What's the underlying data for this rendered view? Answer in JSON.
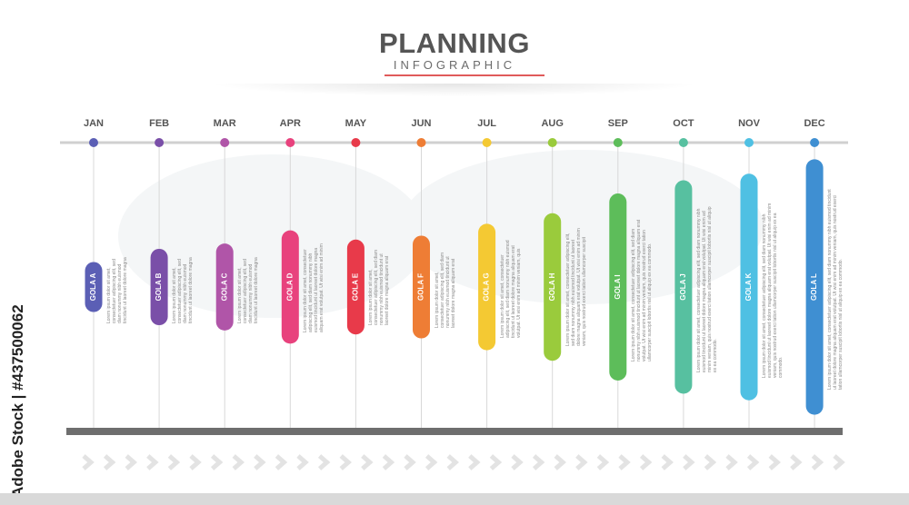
{
  "header": {
    "title": "PLANNING",
    "subtitle": "INFOGRAPHIC",
    "underline_color": "#e05a5a"
  },
  "watermark": "Adobe Stock | #437500062",
  "body_text": "Lorem ipsum dolor sit amet, consectetuer adipiscing elit, sed diam nonummy nibh euismod tincidunt ut laoreet dolore magna aliquam erat volutpat. Ut wisi enim ad minim veniam, quis nostrud exerci tation ullamcorper suscipit lobortis nisl ut aliquip ex ea commodo.",
  "months": [
    {
      "month": "JAN",
      "goal": "GOLA A",
      "color": "#5b5fb5",
      "duration": 0.19
    },
    {
      "month": "FEB",
      "goal": "GOLA B",
      "color": "#7a4fa8",
      "duration": 0.29
    },
    {
      "month": "MAR",
      "goal": "GOLA C",
      "color": "#b055a8",
      "duration": 0.33
    },
    {
      "month": "APR",
      "goal": "GOLA D",
      "color": "#e8427d",
      "duration": 0.43
    },
    {
      "month": "MAY",
      "goal": "GOLA E",
      "color": "#e83a4a",
      "duration": 0.36
    },
    {
      "month": "JUN",
      "goal": "GOLA F",
      "color": "#ee7d35",
      "duration": 0.39
    },
    {
      "month": "JUL",
      "goal": "GOLA G",
      "color": "#f4c933",
      "duration": 0.48
    },
    {
      "month": "AUG",
      "goal": "GOLA H",
      "color": "#9acb3c",
      "duration": 0.56
    },
    {
      "month": "SEP",
      "goal": "GOLA I",
      "color": "#5dbd5a",
      "duration": 0.71
    },
    {
      "month": "OCT",
      "goal": "GOLA J",
      "color": "#57c0a0",
      "duration": 0.81
    },
    {
      "month": "NOV",
      "goal": "GOLA K",
      "color": "#4fc0e3",
      "duration": 0.86
    },
    {
      "month": "DEC",
      "goal": "GOLA L",
      "color": "#3f8fd2",
      "duration": 0.97
    }
  ]
}
